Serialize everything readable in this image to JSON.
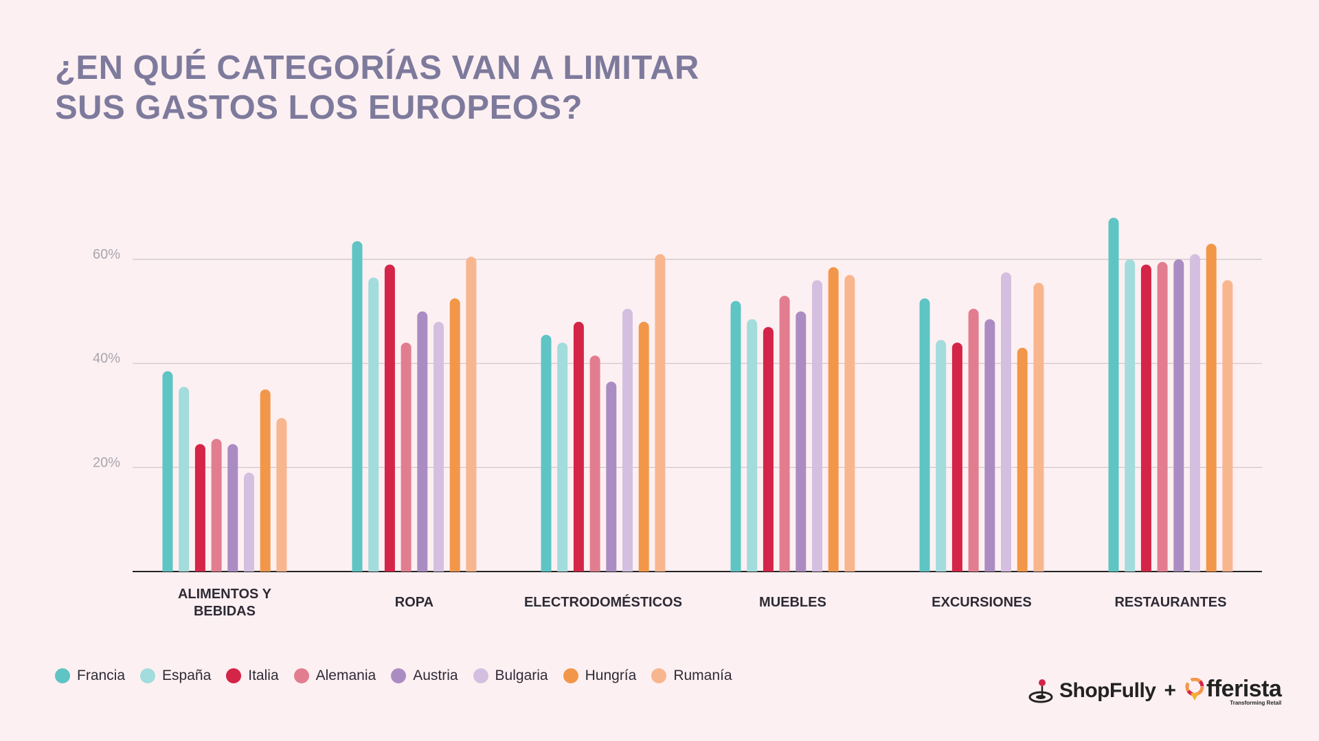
{
  "title": {
    "line1": "¿EN QUÉ CATEGORÍAS VAN A LIMITAR",
    "line2": "SUS GASTOS LOS EUROPEOS?"
  },
  "chart_data": {
    "type": "bar",
    "categories": [
      [
        "ALIMENTOS Y",
        "BEBIDAS"
      ],
      [
        "ROPA"
      ],
      [
        "ELECTRODOMÉSTICOS"
      ],
      [
        "MUEBLES"
      ],
      [
        "EXCURSIONES"
      ],
      [
        "RESTAURANTES"
      ]
    ],
    "ylim": [
      0,
      70
    ],
    "yticks": [
      {
        "value": 20,
        "label": "20%"
      },
      {
        "value": 40,
        "label": "40%"
      },
      {
        "value": 60,
        "label": "60%"
      }
    ],
    "grid": true,
    "legend_position": "bottom-left",
    "series": [
      {
        "name": "Francia",
        "color": "#5ec4c4",
        "values": [
          38.5,
          63.5,
          45.5,
          52,
          52.5,
          68
        ]
      },
      {
        "name": "España",
        "color": "#a2dcdc",
        "values": [
          35.5,
          56.5,
          44,
          48.5,
          44.5,
          60
        ]
      },
      {
        "name": "Italia",
        "color": "#d42447",
        "values": [
          24.5,
          59,
          48,
          47,
          44,
          59
        ]
      },
      {
        "name": "Alemania",
        "color": "#e27d8f",
        "values": [
          25.5,
          44,
          41.5,
          53,
          50.5,
          59.5
        ]
      },
      {
        "name": "Austria",
        "color": "#ab8cc2",
        "values": [
          24.5,
          50,
          36.5,
          50,
          48.5,
          60
        ]
      },
      {
        "name": "Bulgaria",
        "color": "#d5bfe0",
        "values": [
          19,
          48,
          50.5,
          56,
          57.5,
          61
        ]
      },
      {
        "name": "Hungría",
        "color": "#f29749",
        "values": [
          35,
          52.5,
          48,
          58.5,
          43,
          63
        ]
      },
      {
        "name": "Rumanía",
        "color": "#f8b68f",
        "values": [
          29.5,
          60.5,
          61,
          57,
          55.5,
          56
        ]
      }
    ]
  },
  "logos": {
    "shopfully": "ShopFully",
    "plus": "+",
    "offerista": "fferista",
    "offerista_tagline": "Transforming Retail"
  }
}
